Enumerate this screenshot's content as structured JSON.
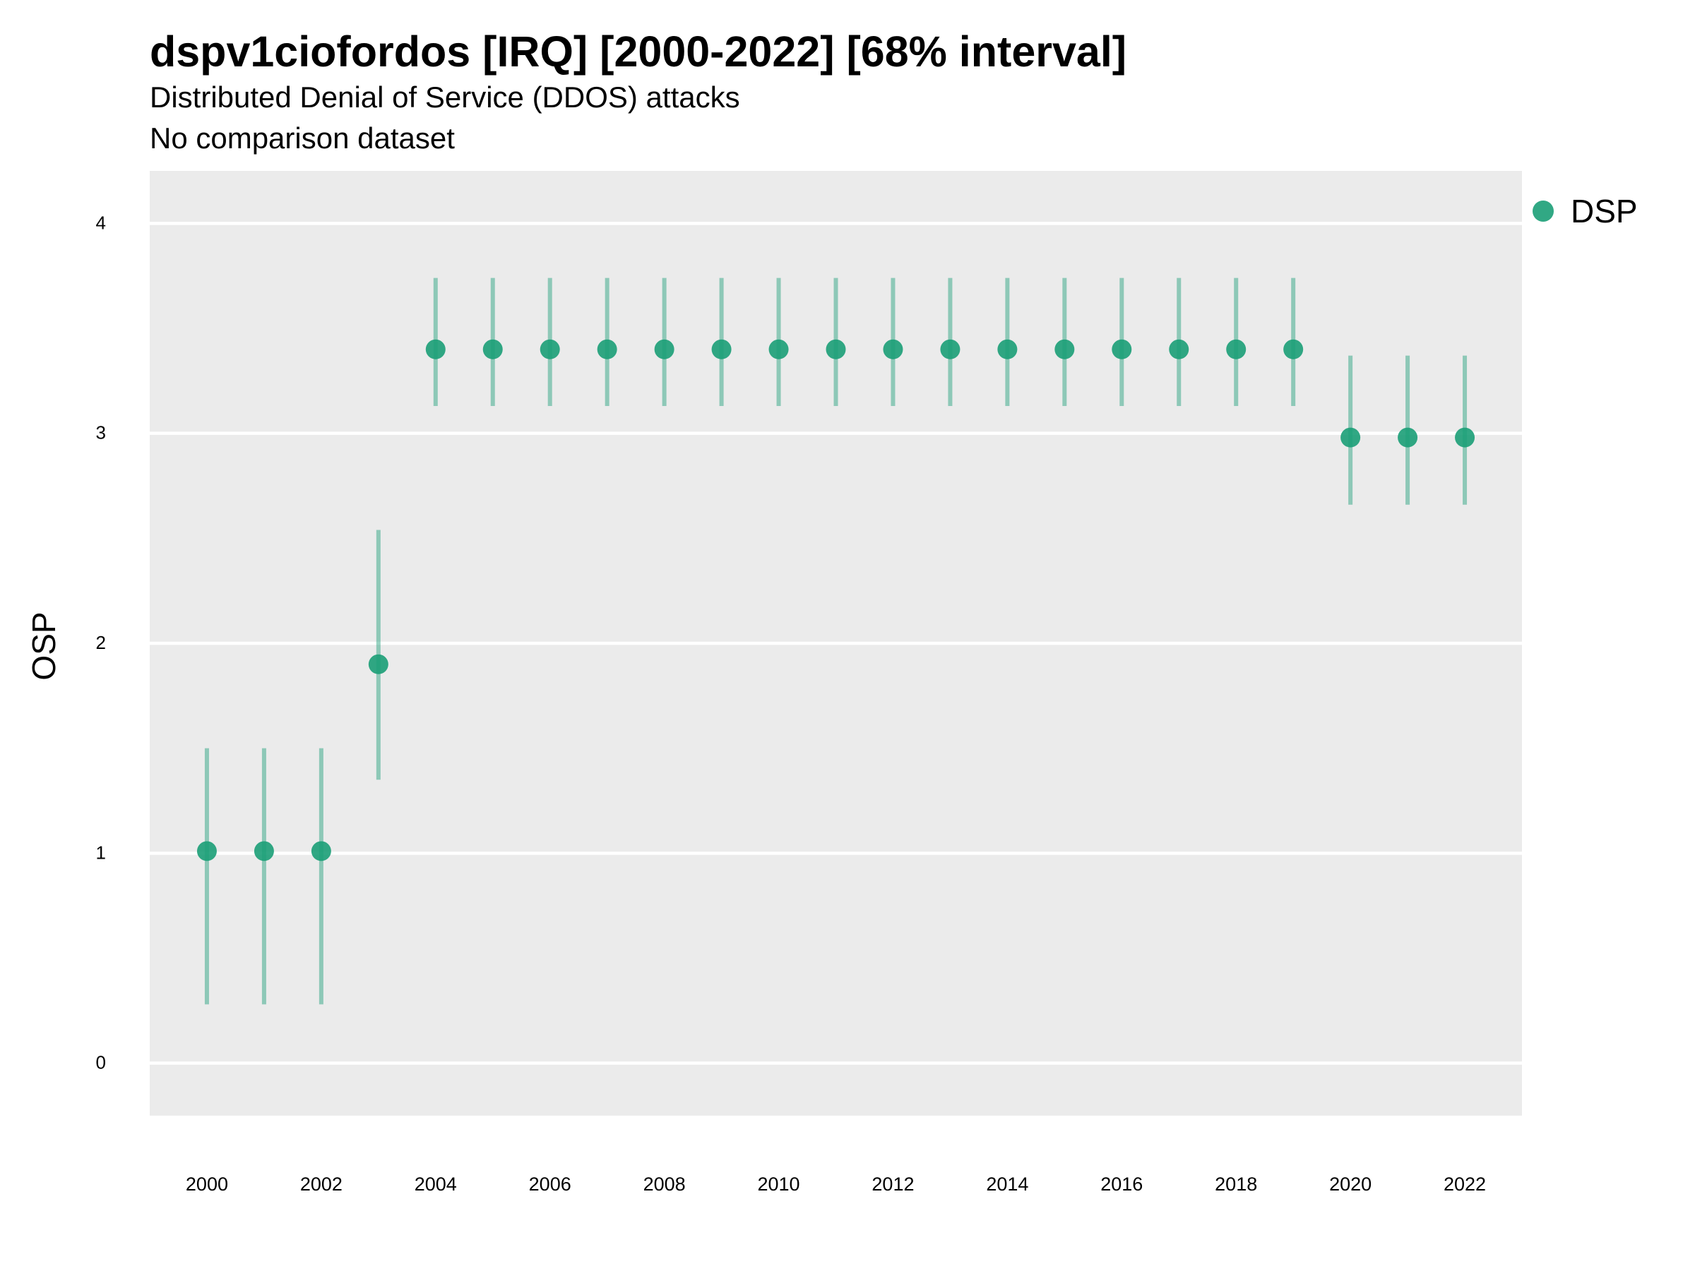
{
  "title": "dspv1ciofordos [IRQ] [2000-2022] [68% interval]",
  "subtitle_line1": "Distributed Denial of Service (DDOS) attacks",
  "subtitle_line2": "No comparison dataset",
  "colors": {
    "series": "#1b9e77",
    "panel": "#ebebeb",
    "grid": "#ffffff"
  },
  "chart_data": {
    "type": "scatter",
    "title": "dspv1ciofordos [IRQ] [2000-2022] [68% interval]",
    "subtitle": "Distributed Denial of Service (DDOS) attacks / No comparison dataset",
    "ylabel": "OSP",
    "xlabel": "",
    "ylim": [
      -0.25,
      4.25
    ],
    "xlim": [
      1999,
      2023
    ],
    "yticks": [
      0,
      1,
      2,
      3,
      4
    ],
    "xticks": [
      2000,
      2002,
      2004,
      2006,
      2008,
      2010,
      2012,
      2014,
      2016,
      2018,
      2020,
      2022
    ],
    "grid": "y-major",
    "legend_position": "top-right",
    "series": [
      {
        "name": "DSP",
        "x": [
          2000,
          2001,
          2002,
          2003,
          2004,
          2005,
          2006,
          2007,
          2008,
          2009,
          2010,
          2011,
          2012,
          2013,
          2014,
          2015,
          2016,
          2017,
          2018,
          2019,
          2020,
          2021,
          2022
        ],
        "y": [
          1.01,
          1.01,
          1.01,
          1.9,
          3.4,
          3.4,
          3.4,
          3.4,
          3.4,
          3.4,
          3.4,
          3.4,
          3.4,
          3.4,
          3.4,
          3.4,
          3.4,
          3.4,
          3.4,
          3.4,
          2.98,
          2.98,
          2.98
        ],
        "lower": [
          0.28,
          0.28,
          0.28,
          1.35,
          3.13,
          3.13,
          3.13,
          3.13,
          3.13,
          3.13,
          3.13,
          3.13,
          3.13,
          3.13,
          3.13,
          3.13,
          3.13,
          3.13,
          3.13,
          3.13,
          2.66,
          2.66,
          2.66
        ],
        "upper": [
          1.5,
          1.5,
          1.5,
          2.54,
          3.74,
          3.74,
          3.74,
          3.74,
          3.74,
          3.74,
          3.74,
          3.74,
          3.74,
          3.74,
          3.74,
          3.74,
          3.74,
          3.74,
          3.74,
          3.74,
          3.37,
          3.37,
          3.37
        ]
      }
    ]
  }
}
